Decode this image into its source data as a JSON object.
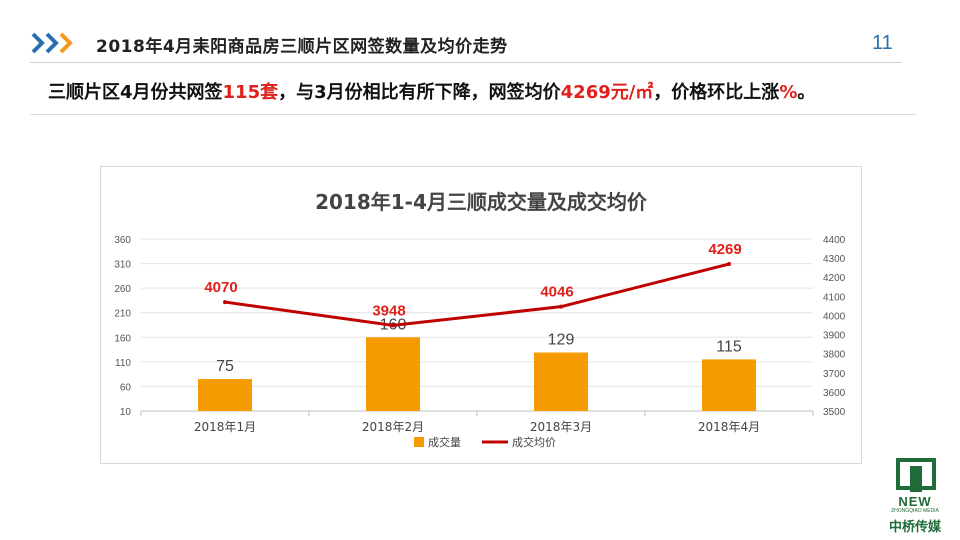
{
  "header": {
    "title": "2018年4月耒阳商品房三顺片区网签数量及均价走势",
    "page_number": "11"
  },
  "summary": {
    "part1": "三顺片区4月份共网签",
    "units": "115套",
    "part2": "，与3月份相比有所下降，网签均价",
    "price": "4269元/㎡",
    "part3": "，价格环比上涨",
    "pct": "%",
    "part4": "。"
  },
  "logo": {
    "brand_en": "NEW",
    "brand_sub": "ZHONGQIAO MEDIA",
    "brand_cn": "中桥传媒"
  },
  "colors": {
    "accent_blue": "#2a6fb0",
    "accent_orange": "#f59a1a",
    "highlight_red": "#e0201b",
    "bar": "#f59a00",
    "line": "#c00000"
  },
  "chart_data": {
    "type": "bar",
    "title": "2018年1-4月三顺成交量及成交均价",
    "categories": [
      "2018年1月",
      "2018年2月",
      "2018年3月",
      "2018年4月"
    ],
    "series": [
      {
        "name": "成交量",
        "type": "bar",
        "axis": "left",
        "values": [
          75,
          160,
          129,
          115
        ],
        "color": "#f59a00"
      },
      {
        "name": "成交均价",
        "type": "line",
        "axis": "right",
        "values": [
          4070,
          3948,
          4046,
          4269
        ],
        "color": "#c00000"
      }
    ],
    "y_left": {
      "min": 10,
      "max": 360,
      "ticks": [
        10,
        60,
        110,
        160,
        210,
        260,
        310,
        360
      ]
    },
    "y_right": {
      "min": 3500,
      "max": 4400,
      "ticks": [
        3500,
        3600,
        3700,
        3800,
        3900,
        4000,
        4100,
        4200,
        4300,
        4400
      ]
    },
    "legend_position": "bottom",
    "grid": "horizontal"
  }
}
